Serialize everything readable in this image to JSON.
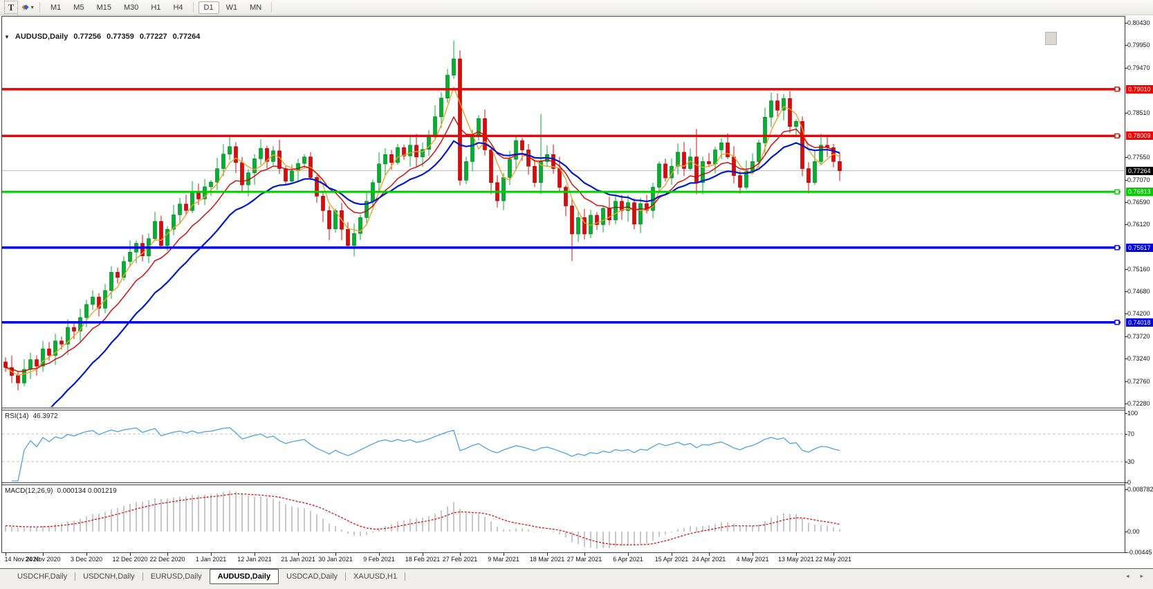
{
  "toolbar": {
    "text_tool_label": "T",
    "styles_caret": "▾",
    "timeframes": [
      "M1",
      "M5",
      "M15",
      "M30",
      "H1",
      "H4",
      "D1",
      "W1",
      "MN"
    ],
    "active_timeframe": "D1"
  },
  "chart": {
    "collapse_icon": "▼",
    "symbol": "AUDUSD,Daily",
    "open": "0.77256",
    "high": "0.77359",
    "low": "0.77227",
    "close": "0.77264"
  },
  "price_axis": {
    "ticks": [
      "0.80430",
      "0.79950",
      "0.79470",
      "0.78510",
      "0.77550",
      "0.77070",
      "0.76590",
      "0.76120",
      "0.75160",
      "0.74680",
      "0.74200",
      "0.73720",
      "0.73240",
      "0.72760",
      "0.72280"
    ]
  },
  "levels": [
    {
      "label": "0.79010",
      "value": 0.7901,
      "color": "#f40000",
      "thickness": 3.5
    },
    {
      "label": "0.78009",
      "value": 0.78009,
      "color": "#f40000",
      "thickness": 3.5
    },
    {
      "label": "0.76813",
      "value": 0.76813,
      "color": "#00cc00",
      "thickness": 3
    },
    {
      "label": "0.75617",
      "value": 0.75617,
      "color": "#0000e0",
      "thickness": 3.5
    },
    {
      "label": "0.74018",
      "value": 0.74018,
      "color": "#0000e0",
      "thickness": 3.5
    }
  ],
  "current_price": {
    "label": "0.77264",
    "value": 0.77264
  },
  "indicators": {
    "rsi": {
      "name": "RSI(14)",
      "value": "46.3972",
      "axis": [
        "100",
        "70",
        "30",
        "0"
      ],
      "dashed_levels": [
        70,
        30
      ]
    },
    "macd": {
      "name": "MACD(12,26,9)",
      "values": "0.000134 0.001219",
      "axis": [
        "0.008782",
        "0.00",
        "-0.00445"
      ]
    }
  },
  "chart_data": {
    "type": "candlestick",
    "symbol": "AUDUSD",
    "timeframe": "Daily",
    "y_range": [
      0.7228,
      0.8043
    ],
    "closes": [
      0.7305,
      0.7288,
      0.7272,
      0.7301,
      0.7322,
      0.7308,
      0.7345,
      0.7331,
      0.7362,
      0.7355,
      0.7391,
      0.7383,
      0.7412,
      0.744,
      0.7456,
      0.7432,
      0.747,
      0.7509,
      0.7498,
      0.7532,
      0.7552,
      0.7571,
      0.7544,
      0.7581,
      0.7618,
      0.7566,
      0.7601,
      0.7632,
      0.7655,
      0.7641,
      0.7682,
      0.7666,
      0.7692,
      0.7702,
      0.7731,
      0.7762,
      0.7778,
      0.7744,
      0.7696,
      0.7722,
      0.7752,
      0.7774,
      0.7746,
      0.7769,
      0.7731,
      0.7704,
      0.7726,
      0.7742,
      0.7756,
      0.7712,
      0.7672,
      0.7641,
      0.7602,
      0.7641,
      0.7601,
      0.7566,
      0.7592,
      0.7626,
      0.7661,
      0.7701,
      0.7741,
      0.7761,
      0.7744,
      0.7776,
      0.7758,
      0.7781,
      0.7756,
      0.7772,
      0.7802,
      0.7842,
      0.7882,
      0.7931,
      0.7966,
      0.7706,
      0.7746,
      0.7801,
      0.7838,
      0.7771,
      0.7701,
      0.7662,
      0.7712,
      0.7751,
      0.7791,
      0.7771,
      0.7736,
      0.7701,
      0.7746,
      0.7761,
      0.7731,
      0.7691,
      0.7651,
      0.7591,
      0.7626,
      0.7591,
      0.7631,
      0.7611,
      0.7646,
      0.7621,
      0.7661,
      0.7641,
      0.7658,
      0.7612,
      0.7656,
      0.7641,
      0.7691,
      0.7741,
      0.7711,
      0.7736,
      0.7766,
      0.7731,
      0.7756,
      0.7701,
      0.7746,
      0.7741,
      0.7771,
      0.7786,
      0.7756,
      0.7716,
      0.7691,
      0.7726,
      0.7746,
      0.7786,
      0.7841,
      0.7876,
      0.7856,
      0.7881,
      0.7821,
      0.7832,
      0.7731,
      0.7701,
      0.7746,
      0.7781,
      0.7776,
      0.7746,
      0.77264
    ],
    "wick_overrides": {
      "55": {
        "low": 0.756
      },
      "72": {
        "high": 0.8005
      },
      "73": {
        "low": 0.7695
      },
      "86": {
        "high": 0.7848
      },
      "91": {
        "low": 0.7533
      },
      "111": {
        "high": 0.7816
      },
      "125": {
        "high": 0.7891
      }
    },
    "date_labels": [
      {
        "text": "14 Nov 2020",
        "i": 0
      },
      {
        "text": "24 Nov 2020",
        "i": 6
      },
      {
        "text": "3 Dec 2020",
        "i": 13
      },
      {
        "text": "12 Dec 2020",
        "i": 20
      },
      {
        "text": "22 Dec 2020",
        "i": 26
      },
      {
        "text": "1 Jan 2021",
        "i": 33
      },
      {
        "text": "12 Jan 2021",
        "i": 40
      },
      {
        "text": "21 Jan 2021",
        "i": 47
      },
      {
        "text": "30 Jan 2021",
        "i": 53
      },
      {
        "text": "9 Feb 2021",
        "i": 60
      },
      {
        "text": "18 Feb 2021",
        "i": 67
      },
      {
        "text": "27 Feb 2021",
        "i": 73
      },
      {
        "text": "9 Mar 2021",
        "i": 80
      },
      {
        "text": "18 Mar 2021",
        "i": 87
      },
      {
        "text": "27 Mar 2021",
        "i": 93
      },
      {
        "text": "6 Apr 2021",
        "i": 100
      },
      {
        "text": "15 Apr 2021",
        "i": 107
      },
      {
        "text": "24 Apr 2021",
        "i": 113
      },
      {
        "text": "4 May 2021",
        "i": 120
      },
      {
        "text": "13 May 2021",
        "i": 127
      },
      {
        "text": "22 May 2021",
        "i": 133
      }
    ],
    "moving_averages": [
      {
        "name": "fast-ma",
        "type": "sma",
        "period": 4,
        "color": "#eda225",
        "width": 1.4
      },
      {
        "name": "medium-ma",
        "type": "ema",
        "k": 0.18,
        "seed_offset": 0,
        "color": "#d40000",
        "width": 1.4
      },
      {
        "name": "slow-ma",
        "type": "ema",
        "k": 0.1,
        "seed": 0.7085,
        "color": "#0018cc",
        "width": 2.2
      }
    ]
  },
  "tabs": [
    {
      "label": "USDCHF,Daily",
      "active": false
    },
    {
      "label": "USDCNH,Daily",
      "active": false
    },
    {
      "label": "EURUSD,Daily",
      "active": false
    },
    {
      "label": "AUDUSD,Daily",
      "active": true
    },
    {
      "label": "USDCAD,Daily",
      "active": false
    },
    {
      "label": "XAUUSD,H1",
      "active": false
    }
  ],
  "tab_arrows": [
    "◂",
    "▸"
  ],
  "colors": {
    "bull": "#00b22d",
    "bull_border": "#00721c",
    "bear": "#dc0a0a",
    "bear_border": "#8d0000",
    "current_line": "#bcbcbc",
    "current_label_bg": "#000000",
    "rsi_line": "#4da3e0",
    "rsi_dash": "#c2c2c2",
    "macd_bar": "#b5b5b5",
    "macd_signal": "#e00000",
    "frame": "#3c3c3c"
  }
}
